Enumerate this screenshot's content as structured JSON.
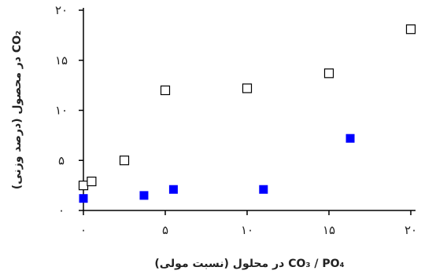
{
  "chart_data": {
    "type": "scatter",
    "title": "",
    "xlabel": "CO₃ / PO₄ در محلول (نسبت مولی)",
    "ylabel": "CO₂ در محصول (درصد وزنی)",
    "xlim": [
      0,
      20
    ],
    "ylim": [
      0,
      20
    ],
    "xticks": [
      {
        "value": 0,
        "label": "۰"
      },
      {
        "value": 5,
        "label": "۵"
      },
      {
        "value": 10,
        "label": "۱۰"
      },
      {
        "value": 15,
        "label": "۱۵"
      },
      {
        "value": 20,
        "label": "۲۰"
      }
    ],
    "yticks": [
      {
        "value": 0,
        "label": "۰"
      },
      {
        "value": 5,
        "label": "۵"
      },
      {
        "value": 10,
        "label": "۱۰"
      },
      {
        "value": 15,
        "label": "۱۵"
      },
      {
        "value": 20,
        "label": "۲۰"
      }
    ],
    "grid": false,
    "series": [
      {
        "marker": "hollow-square",
        "color": "#000000",
        "points": [
          {
            "x": 0.0,
            "y": 2.5
          },
          {
            "x": 0.5,
            "y": 2.9
          },
          {
            "x": 2.5,
            "y": 5.0
          },
          {
            "x": 5.0,
            "y": 12.0
          },
          {
            "x": 10.0,
            "y": 12.2
          },
          {
            "x": 15.0,
            "y": 13.7
          },
          {
            "x": 20.0,
            "y": 18.1
          }
        ]
      },
      {
        "marker": "filled-square",
        "color": "#0000ff",
        "points": [
          {
            "x": 0.0,
            "y": 1.2
          },
          {
            "x": 3.7,
            "y": 1.5
          },
          {
            "x": 5.5,
            "y": 2.1
          },
          {
            "x": 11.0,
            "y": 2.1
          },
          {
            "x": 16.3,
            "y": 7.2
          }
        ]
      }
    ]
  }
}
